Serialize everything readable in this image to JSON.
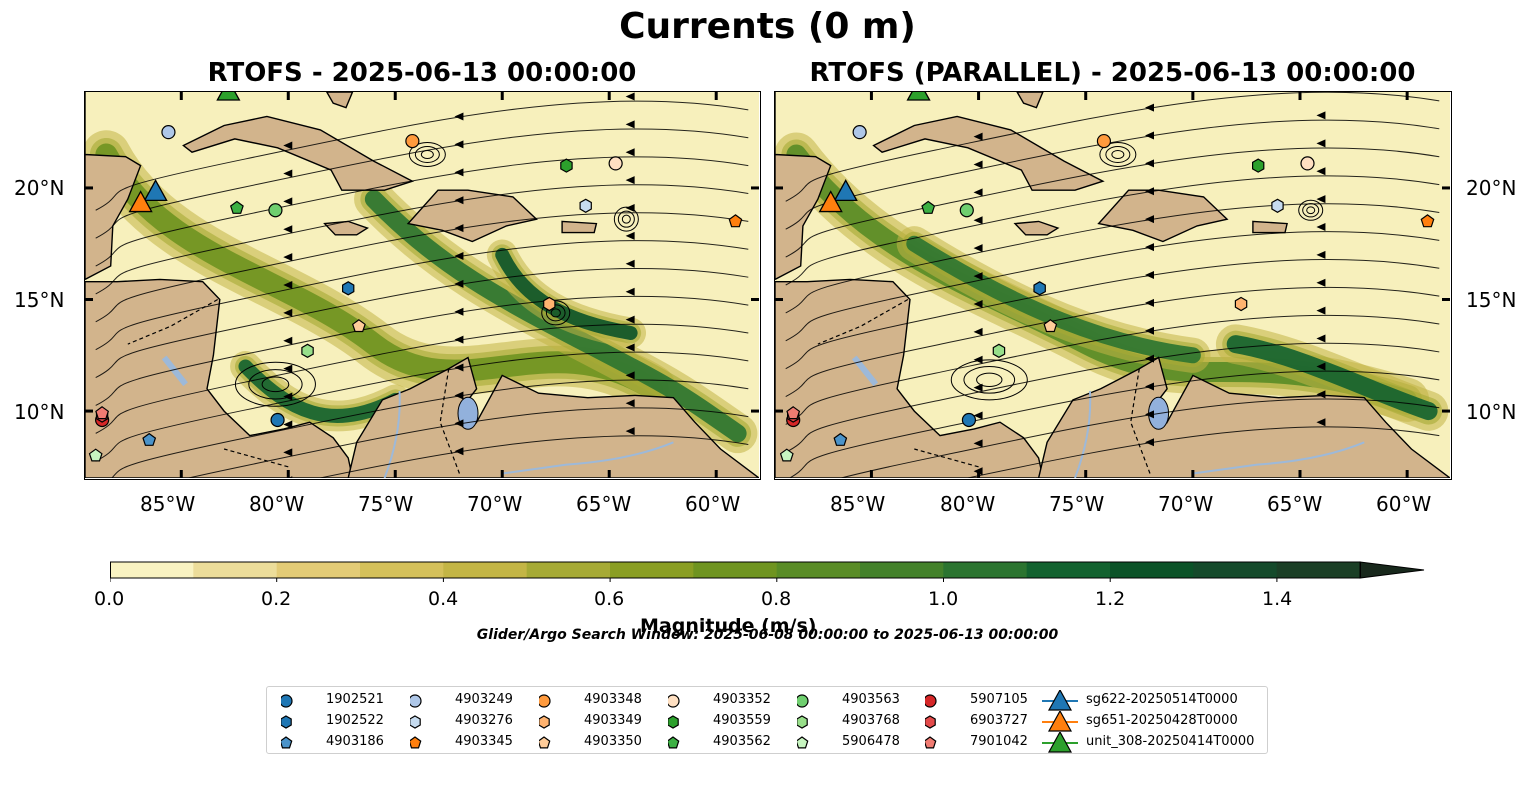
{
  "title": "Currents (0 m)",
  "panels": [
    {
      "title": "RTOFS - 2025-06-13 00:00:00",
      "variant": "rtofs"
    },
    {
      "title": "RTOFS (PARALLEL) - 2025-06-13 00:00:00",
      "variant": "parallel"
    }
  ],
  "map": {
    "lon_range": [
      -89.5,
      -58.0
    ],
    "lat_range": [
      7.0,
      24.3
    ],
    "lon_ticks": [
      "85°W",
      "80°W",
      "75°W",
      "70°W",
      "65°W",
      "60°W"
    ],
    "lat_ticks": [
      "20°N",
      "15°N",
      "10°N"
    ],
    "colors": {
      "land": "#d2b48c",
      "ocean_low": "#f7f0bc",
      "ocean_high": "#0d5c2c",
      "lake": "#92b1dc",
      "river": "#9db9d9"
    }
  },
  "colorbar": {
    "label": "Magnitude (m/s)",
    "ticks": [
      "0.0",
      "0.2",
      "0.4",
      "0.6",
      "0.8",
      "1.0",
      "1.2",
      "1.4"
    ],
    "range": [
      0.0,
      1.5
    ],
    "extend": "max",
    "colors": [
      "#f9f3c2",
      "#ecdd9a",
      "#e3cb76",
      "#d4c05a",
      "#c3b545",
      "#a6aa35",
      "#8a9e23",
      "#6f9420",
      "#598c26",
      "#43812a",
      "#2b7430",
      "#12622f",
      "#0b5328",
      "#154a2b",
      "#1b3f26",
      "#18281c"
    ]
  },
  "search_window": "Glider/Argo Search Window: 2025-06-08 00:00:00 to 2025-06-13 00:00:00",
  "legend": {
    "items": [
      {
        "label": "1902521",
        "marker": "circle",
        "color": "#1f77b4"
      },
      {
        "label": "1902522",
        "marker": "hexagon",
        "color": "#1f77b4"
      },
      {
        "label": "4903186",
        "marker": "pentagon",
        "color": "#4b93c9"
      },
      {
        "label": "4903249",
        "marker": "circle",
        "color": "#aec7e8"
      },
      {
        "label": "4903276",
        "marker": "hexagon",
        "color": "#c6dbef"
      },
      {
        "label": "4903345",
        "marker": "pentagon",
        "color": "#ff7f0e"
      },
      {
        "label": "4903348",
        "marker": "circle",
        "color": "#ff9a3d"
      },
      {
        "label": "4903349",
        "marker": "hexagon",
        "color": "#ffb370"
      },
      {
        "label": "4903350",
        "marker": "pentagon",
        "color": "#ffcc99"
      },
      {
        "label": "4903352",
        "marker": "circle",
        "color": "#ffe0c2"
      },
      {
        "label": "4903559",
        "marker": "hexagon",
        "color": "#2ca02c"
      },
      {
        "label": "4903562",
        "marker": "pentagon",
        "color": "#3cb043"
      },
      {
        "label": "4903563",
        "marker": "circle",
        "color": "#6fcf6f"
      },
      {
        "label": "4903768",
        "marker": "hexagon",
        "color": "#98df8a"
      },
      {
        "label": "5906478",
        "marker": "pentagon",
        "color": "#c7f5c0"
      },
      {
        "label": "5907105",
        "marker": "circle",
        "color": "#d62728"
      },
      {
        "label": "6903727",
        "marker": "hexagon",
        "color": "#e34a4a"
      },
      {
        "label": "7901042",
        "marker": "pentagon",
        "color": "#f07b72"
      },
      {
        "label": "sg622-20250514T0000",
        "marker": "triangle",
        "color": "#1f77b4"
      },
      {
        "label": "sg651-20250428T0000",
        "marker": "triangle",
        "color": "#ff7f0e"
      },
      {
        "label": "unit_308-20250414T0000",
        "marker": "triangle",
        "color": "#2ca02c"
      }
    ]
  },
  "float_positions": [
    {
      "id": "1902521",
      "lon": -80.5,
      "lat": 9.6
    },
    {
      "id": "1902522",
      "lon": -77.2,
      "lat": 15.5
    },
    {
      "id": "4903186",
      "lon": -86.5,
      "lat": 8.7
    },
    {
      "id": "4903249",
      "lon": -85.6,
      "lat": 22.5
    },
    {
      "id": "4903276",
      "lon": -66.1,
      "lat": 19.2
    },
    {
      "id": "4903345",
      "lon": -59.1,
      "lat": 18.5
    },
    {
      "id": "4903348",
      "lon": -74.2,
      "lat": 22.1
    },
    {
      "id": "4903349",
      "lon": -67.8,
      "lat": 14.8
    },
    {
      "id": "4903350",
      "lon": -76.7,
      "lat": 13.8
    },
    {
      "id": "4903352",
      "lon": -64.7,
      "lat": 21.1
    },
    {
      "id": "4903559",
      "lon": -67.0,
      "lat": 21.0
    },
    {
      "id": "4903562",
      "lon": -82.4,
      "lat": 19.1
    },
    {
      "id": "4903563",
      "lon": -80.6,
      "lat": 19.0
    },
    {
      "id": "4903768",
      "lon": -79.1,
      "lat": 12.7
    },
    {
      "id": "5906478",
      "lon": -89.0,
      "lat": 8.0
    },
    {
      "id": "5907105",
      "lon": -88.7,
      "lat": 9.6
    },
    {
      "id": "6903727",
      "lon": -88.7,
      "lat": 9.8
    },
    {
      "id": "7901042",
      "lon": -88.7,
      "lat": 9.9
    }
  ],
  "glider_positions": [
    {
      "id": "sg622-20250514T0000",
      "lon": -86.2,
      "lat": 19.8
    },
    {
      "id": "sg651-20250428T0000",
      "lon": -86.9,
      "lat": 19.3
    },
    {
      "id": "unit_308-20250414T0000",
      "lon": -82.8,
      "lat": 24.3
    }
  ]
}
